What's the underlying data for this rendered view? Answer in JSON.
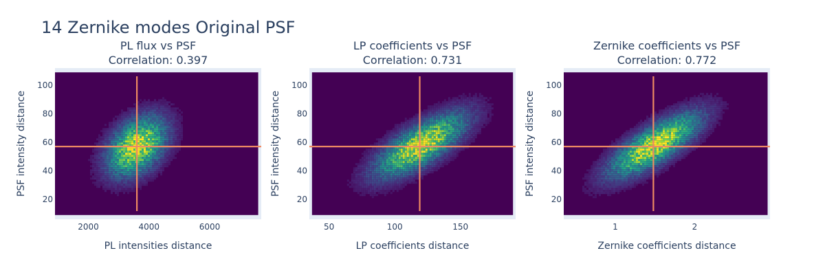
{
  "figure": {
    "title": "14 Zernike modes Original PSF"
  },
  "chart_data": [
    {
      "type": "heatmap",
      "title": "PL flux vs PSF",
      "subtitle": "Correlation: 0.397",
      "xlabel": "PL intensities distance",
      "ylabel": "PSF intensity distance",
      "xlim": [
        900,
        7700
      ],
      "ylim": [
        6,
        112
      ],
      "xticks": [
        2000,
        4000,
        6000
      ],
      "yticks": [
        20,
        40,
        60,
        80,
        100
      ],
      "hist_xrange": [
        900,
        7600
      ],
      "hist_yrange": [
        9,
        109
      ],
      "center": [
        3600,
        57
      ],
      "sigma": [
        650,
        14
      ],
      "rho": 0.4,
      "marker_lines": {
        "x": 3600,
        "y": 57
      }
    },
    {
      "type": "heatmap",
      "title": "LP coefficients vs PSF",
      "subtitle": "Correlation: 0.731",
      "xlabel": "LP coefficients distance",
      "ylabel": "PSF intensity distance",
      "xlim": [
        35,
        192
      ],
      "ylim": [
        6,
        112
      ],
      "xticks": [
        50,
        100,
        150
      ],
      "yticks": [
        20,
        40,
        60,
        80,
        100
      ],
      "hist_xrange": [
        37,
        190
      ],
      "hist_yrange": [
        9,
        109
      ],
      "center": [
        120,
        58
      ],
      "sigma": [
        23,
        15
      ],
      "rho": 0.73,
      "marker_lines": {
        "x": 119,
        "y": 57
      }
    },
    {
      "type": "heatmap",
      "title": "Zernike coefficients vs PSF",
      "subtitle": "Correlation: 0.772",
      "xlabel": "Zernike coefficients distance",
      "ylabel": "PSF intensity distance",
      "xlim": [
        0.35,
        2.95
      ],
      "ylim": [
        6,
        112
      ],
      "xticks": [
        1,
        2
      ],
      "yticks": [
        20,
        40,
        60,
        80,
        100
      ],
      "hist_xrange": [
        0.35,
        2.92
      ],
      "hist_yrange": [
        9,
        109
      ],
      "center": [
        1.5,
        58
      ],
      "sigma": [
        0.38,
        15
      ],
      "rho": 0.77,
      "marker_lines": {
        "x": 1.48,
        "y": 57
      }
    }
  ],
  "colors": {
    "plot_bg": "#e5ecf6",
    "marker_line": "#ef8a62",
    "title_text": "#2a3f5f",
    "tick_text": "#2a3f5f",
    "colorscale": [
      "#440154",
      "#482878",
      "#3e4989",
      "#31688e",
      "#26828e",
      "#1f9e89",
      "#35b779",
      "#6ece58",
      "#b5de2b",
      "#fde725"
    ]
  }
}
